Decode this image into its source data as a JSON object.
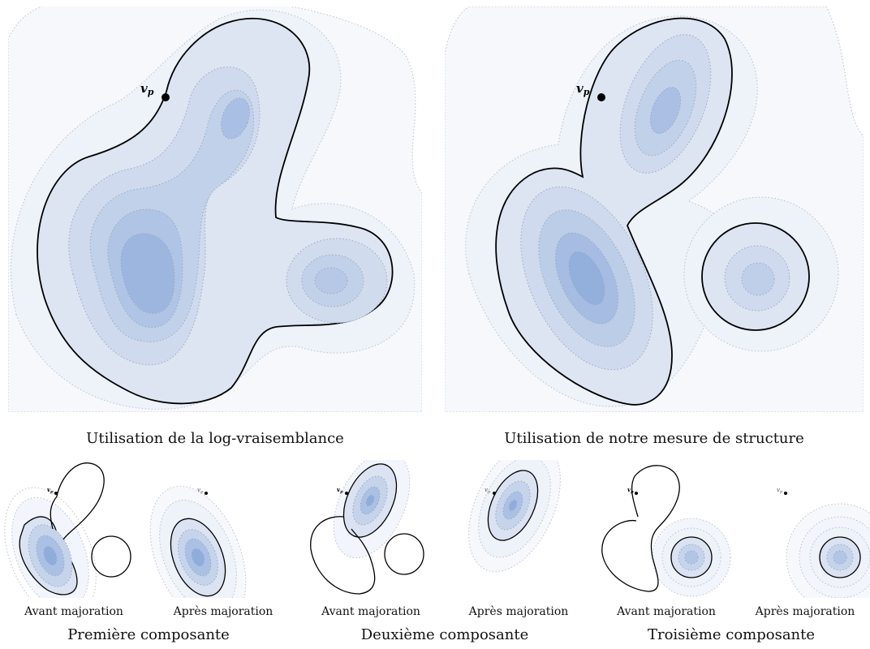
{
  "point_label": "v",
  "point_subscript": "p",
  "top": {
    "left_caption": "Utilisation de la log-vraisemblance",
    "right_caption": "Utilisation de notre mesure de structure"
  },
  "bottom": {
    "groups": [
      {
        "title": "Première composante",
        "before": "Avant majoration",
        "after": "Après majoration"
      },
      {
        "title": "Deuxième composante",
        "before": "Avant majoration",
        "after": "Après majoration"
      },
      {
        "title": "Troisième composante",
        "before": "Avant majoration",
        "after": "Après majoration"
      }
    ]
  },
  "colors": {
    "fill_light": "#eef2f9",
    "fill_mid": "#c5d3ea",
    "fill_dark": "#8eaad9",
    "contour": "#000000",
    "dotted": "#b9c1cc"
  }
}
